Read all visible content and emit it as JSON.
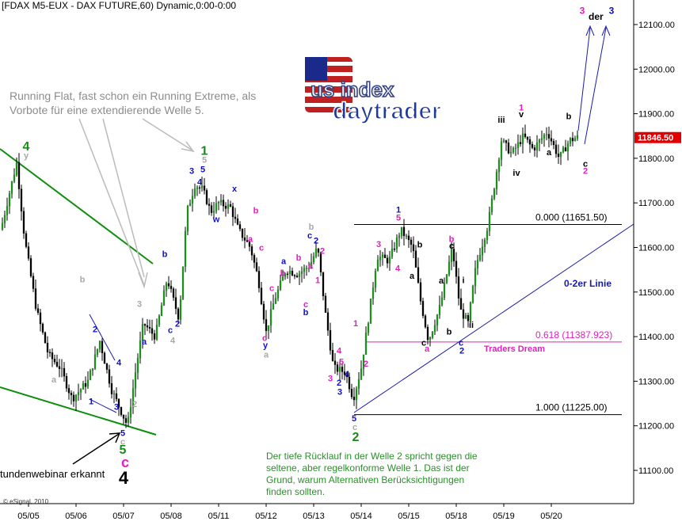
{
  "header": {
    "title": "[FDAX M5-EUX - DAX FUTURE,60) Dynamic,0:00-0:00"
  },
  "annotations": {
    "running_flat": "Running Flat, fast schon ein Running Extreme, als Vorbote für eine extendierende Welle 5.",
    "welle2_note": "Der tiefe Rücklauf in der Welle 2 spricht gegen die seltene, aber regelkonforme Welle 1. Das ist der Grund, warum Alternativen Berücksichtigungen finden sollten.",
    "webinar": "tundenwebinar erkannt",
    "copyright": "© eSignal, 2010",
    "line_label": "0-2er Linie",
    "traders_dream": "Traders Dream",
    "target": "der"
  },
  "colors": {
    "candle": "#1f8f1f",
    "wick": "#000000",
    "green_line": "#0c8f0c",
    "blue_line": "#1a1aaa",
    "magenta": "#e020c0",
    "blue_label": "#1010cc",
    "grey_label": "#a0a0a0",
    "price_box": "#e00000"
  },
  "chart_data": {
    "type": "candlestick",
    "ylim": [
      11050,
      12180
    ],
    "y_ticks": [
      11100,
      11200,
      11300,
      11400,
      11500,
      11600,
      11700,
      11800,
      11900,
      12000,
      12100
    ],
    "y_tick_labels": [
      "11100.00",
      "11200.00",
      "11300.00",
      "11400.00",
      "11500.00",
      "11600.00",
      "11700.00",
      "11800.00",
      "11900.00",
      "12000.00",
      "12100.00"
    ],
    "x_labels": [
      "05/05",
      "05/06",
      "05/07",
      "05/08",
      "05/11",
      "05/12",
      "05/13",
      "05/14",
      "05/15",
      "05/18",
      "05/19",
      "05/20"
    ],
    "last_price": "11846.50",
    "fib_levels": [
      {
        "label": "0.000 (11651.50)",
        "value": 11651.5
      },
      {
        "label": "0.618 (11387.923)",
        "value": 11387.923
      },
      {
        "label": "1.000 (11225.00)",
        "value": 11225.0
      }
    ],
    "path": [
      [
        0,
        11640
      ],
      [
        20,
        11790
      ],
      [
        30,
        11620
      ],
      [
        45,
        11460
      ],
      [
        60,
        11360
      ],
      [
        75,
        11330
      ],
      [
        90,
        11260
      ],
      [
        110,
        11300
      ],
      [
        125,
        11390
      ],
      [
        140,
        11280
      ],
      [
        160,
        11200
      ],
      [
        170,
        11320
      ],
      [
        180,
        11430
      ],
      [
        195,
        11400
      ],
      [
        210,
        11530
      ],
      [
        225,
        11440
      ],
      [
        235,
        11680
      ],
      [
        245,
        11740
      ],
      [
        255,
        11730
      ],
      [
        265,
        11680
      ],
      [
        275,
        11700
      ],
      [
        290,
        11690
      ],
      [
        300,
        11640
      ],
      [
        315,
        11600
      ],
      [
        325,
        11530
      ],
      [
        335,
        11410
      ],
      [
        345,
        11480
      ],
      [
        360,
        11550
      ],
      [
        375,
        11540
      ],
      [
        390,
        11560
      ],
      [
        400,
        11600
      ],
      [
        410,
        11450
      ],
      [
        420,
        11330
      ],
      [
        435,
        11320
      ],
      [
        445,
        11260
      ],
      [
        455,
        11330
      ],
      [
        465,
        11450
      ],
      [
        475,
        11580
      ],
      [
        490,
        11570
      ],
      [
        505,
        11640
      ],
      [
        520,
        11600
      ],
      [
        530,
        11480
      ],
      [
        540,
        11390
      ],
      [
        555,
        11470
      ],
      [
        570,
        11600
      ],
      [
        580,
        11460
      ],
      [
        590,
        11430
      ],
      [
        600,
        11560
      ],
      [
        615,
        11650
      ],
      [
        625,
        11760
      ],
      [
        632,
        11840
      ],
      [
        645,
        11810
      ],
      [
        660,
        11850
      ],
      [
        672,
        11820
      ],
      [
        690,
        11860
      ],
      [
        705,
        11800
      ],
      [
        718,
        11840
      ],
      [
        730,
        11848
      ]
    ],
    "wave_labels": [
      {
        "text": "4",
        "color": "green",
        "x": 33,
        "price": 11818
      },
      {
        "text": "y",
        "color": "grey",
        "x": 33,
        "price": 11800
      },
      {
        "text": "a",
        "color": "grey",
        "x": 68,
        "price": 11297
      },
      {
        "text": "b",
        "color": "grey",
        "x": 104,
        "price": 11522
      },
      {
        "text": "1",
        "color": "blue",
        "x": 115,
        "price": 11248
      },
      {
        "text": "2",
        "color": "blue",
        "x": 120,
        "price": 11410
      },
      {
        "text": "3",
        "color": "blue",
        "x": 147,
        "price": 11236
      },
      {
        "text": "4",
        "color": "blue",
        "x": 150,
        "price": 11335
      },
      {
        "text": "2",
        "color": "grey",
        "x": 170,
        "price": 11242
      },
      {
        "text": "3",
        "color": "grey",
        "x": 176,
        "price": 11467
      },
      {
        "text": "5",
        "color": "blue",
        "x": 155,
        "price": 11177
      },
      {
        "text": "c",
        "color": "grey",
        "x": 155,
        "price": 11158
      },
      {
        "text": "5",
        "color": "green",
        "x": 155,
        "price": 11137
      },
      {
        "text": "c",
        "color": "magenta",
        "x": 158,
        "price": 11107
      },
      {
        "text": "4",
        "color": "black",
        "x": 156,
        "price": 11070
      },
      {
        "text": "a",
        "color": "blue",
        "x": 182,
        "price": 11382
      },
      {
        "text": "c",
        "color": "blue",
        "x": 215,
        "price": 11408
      },
      {
        "text": "2",
        "color": "blue",
        "x": 224,
        "price": 11422
      },
      {
        "text": "4",
        "color": "grey",
        "x": 218,
        "price": 11385
      },
      {
        "text": "b",
        "color": "blue",
        "x": 208,
        "price": 11579
      },
      {
        "text": "1",
        "color": "green",
        "x": 258,
        "price": 11808
      },
      {
        "text": "5",
        "color": "grey",
        "x": 258,
        "price": 11790
      },
      {
        "text": "3",
        "color": "blue",
        "x": 242,
        "price": 11765
      },
      {
        "text": "5",
        "color": "blue",
        "x": 256,
        "price": 11769
      },
      {
        "text": "4",
        "color": "blue",
        "x": 252,
        "price": 11740
      },
      {
        "text": "x",
        "color": "blue",
        "x": 296,
        "price": 11725
      },
      {
        "text": "w",
        "color": "blue",
        "x": 273,
        "price": 11657
      },
      {
        "text": "b",
        "color": "magenta",
        "x": 323,
        "price": 11676
      },
      {
        "text": "a",
        "color": "magenta",
        "x": 316,
        "price": 11612
      },
      {
        "text": "c",
        "color": "magenta",
        "x": 330,
        "price": 11593
      },
      {
        "text": "c",
        "color": "magenta",
        "x": 343,
        "price": 11502
      },
      {
        "text": "a",
        "color": "blue",
        "x": 358,
        "price": 11563
      },
      {
        "text": "b",
        "color": "magenta",
        "x": 357,
        "price": 11536
      },
      {
        "text": "b",
        "color": "magenta",
        "x": 377,
        "price": 11571
      },
      {
        "text": "b",
        "color": "grey",
        "x": 393,
        "price": 11640
      },
      {
        "text": "c",
        "color": "blue",
        "x": 391,
        "price": 11620
      },
      {
        "text": "2",
        "color": "blue",
        "x": 399,
        "price": 11609
      },
      {
        "text": "2",
        "color": "magenta",
        "x": 407,
        "price": 11586
      },
      {
        "text": "a",
        "color": "magenta",
        "x": 392,
        "price": 11553
      },
      {
        "text": "1",
        "color": "magenta",
        "x": 401,
        "price": 11520
      },
      {
        "text": "c",
        "color": "magenta",
        "x": 386,
        "price": 11466
      },
      {
        "text": "b",
        "color": "blue",
        "x": 386,
        "price": 11448
      },
      {
        "text": "c",
        "color": "magenta",
        "x": 334,
        "price": 11390
      },
      {
        "text": "y",
        "color": "blue",
        "x": 335,
        "price": 11374
      },
      {
        "text": "a",
        "color": "grey",
        "x": 336,
        "price": 11353
      },
      {
        "text": "1",
        "color": "magenta",
        "x": 449,
        "price": 11423
      },
      {
        "text": "2",
        "color": "magenta",
        "x": 462,
        "price": 11333
      },
      {
        "text": "3",
        "color": "magenta",
        "x": 417,
        "price": 11300
      },
      {
        "text": "4",
        "color": "magenta",
        "x": 428,
        "price": 11362
      },
      {
        "text": "2",
        "color": "blue",
        "x": 428,
        "price": 11290
      },
      {
        "text": "5",
        "color": "magenta",
        "x": 431,
        "price": 11337
      },
      {
        "text": "4",
        "color": "blue",
        "x": 438,
        "price": 11310
      },
      {
        "text": "3",
        "color": "blue",
        "x": 429,
        "price": 11270
      },
      {
        "text": "5",
        "color": "blue",
        "x": 447,
        "price": 11210
      },
      {
        "text": "c",
        "color": "grey",
        "x": 448,
        "price": 11191
      },
      {
        "text": "2",
        "color": "green",
        "x": 449,
        "price": 11166
      },
      {
        "text": "1",
        "color": "blue",
        "x": 503,
        "price": 11678
      },
      {
        "text": "5",
        "color": "magenta",
        "x": 503,
        "price": 11660
      },
      {
        "text": "3",
        "color": "magenta",
        "x": 478,
        "price": 11601
      },
      {
        "text": "4",
        "color": "magenta",
        "x": 502,
        "price": 11547
      },
      {
        "text": "a",
        "color": "black",
        "x": 520,
        "price": 11530
      },
      {
        "text": "b",
        "color": "black",
        "x": 530,
        "price": 11600
      },
      {
        "text": "c",
        "color": "black",
        "x": 535,
        "price": 11380
      },
      {
        "text": "a",
        "color": "magenta",
        "x": 539,
        "price": 11366
      },
      {
        "text": "b",
        "color": "magenta",
        "x": 570,
        "price": 11612
      },
      {
        "text": "c",
        "color": "black",
        "x": 570,
        "price": 11597
      },
      {
        "text": "a",
        "color": "black",
        "x": 557,
        "price": 11519
      },
      {
        "text": "b",
        "color": "black",
        "x": 567,
        "price": 11405
      },
      {
        "text": "c",
        "color": "blue",
        "x": 582,
        "price": 11380
      },
      {
        "text": "2",
        "color": "blue",
        "x": 583,
        "price": 11362
      },
      {
        "text": "i",
        "color": "black",
        "x": 585,
        "price": 11520
      },
      {
        "text": "ii",
        "color": "black",
        "x": 595,
        "price": 11420
      },
      {
        "text": "iii",
        "color": "black",
        "x": 633,
        "price": 11880
      },
      {
        "text": "iv",
        "color": "black",
        "x": 652,
        "price": 11761
      },
      {
        "text": "1",
        "color": "magenta",
        "x": 658,
        "price": 11907
      },
      {
        "text": "v",
        "color": "black",
        "x": 658,
        "price": 11892
      },
      {
        "text": "a",
        "color": "black",
        "x": 693,
        "price": 11807
      },
      {
        "text": "b",
        "color": "black",
        "x": 718,
        "price": 11888
      },
      {
        "text": "c",
        "color": "black",
        "x": 739,
        "price": 11781
      },
      {
        "text": "2",
        "color": "magenta",
        "x": 739,
        "price": 11765
      },
      {
        "text": "3",
        "color": "magenta",
        "x": 735,
        "price": 12124
      },
      {
        "text": "3",
        "color": "blue",
        "x": 772,
        "price": 12124
      }
    ]
  }
}
